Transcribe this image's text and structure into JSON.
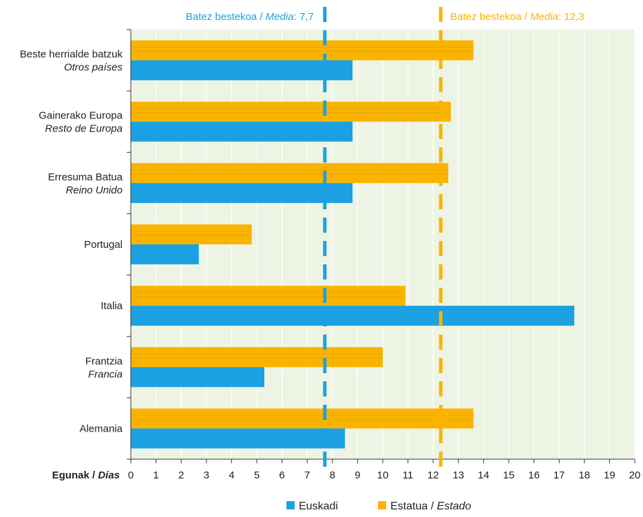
{
  "chart_data": {
    "type": "bar",
    "orientation": "horizontal",
    "categories": [
      {
        "line1": "Beste herrialde batzuk",
        "line2": "Otros países"
      },
      {
        "line1": "Gainerako Europa",
        "line2": "Resto de Europa"
      },
      {
        "line1": "Erresuma Batua",
        "line2": "Reino Unido"
      },
      {
        "line1": "Portugal",
        "line2": ""
      },
      {
        "line1": "Italia",
        "line2": ""
      },
      {
        "line1": "Frantzia",
        "line2": "Francia"
      },
      {
        "line1": "Alemania",
        "line2": ""
      }
    ],
    "series": [
      {
        "name": "Euskadi",
        "color": "#1ba1e2",
        "values": [
          8.8,
          8.8,
          8.8,
          2.7,
          17.6,
          5.3,
          8.5
        ]
      },
      {
        "name": "Estatua / Estado",
        "color": "#fab400",
        "values": [
          13.6,
          12.7,
          12.6,
          4.8,
          10.9,
          10.0,
          13.6
        ]
      }
    ],
    "xlim": [
      0,
      20
    ],
    "xticks": [
      "0",
      "1",
      "2",
      "3",
      "4",
      "5",
      "6",
      "7",
      "8",
      "9",
      "10",
      "11",
      "12",
      "13",
      "14",
      "15",
      "16",
      "17",
      "18",
      "19",
      "20"
    ],
    "xlabel": {
      "bold": "Egunak / ",
      "italic": "Días"
    },
    "mean_lines": [
      {
        "series": "Euskadi",
        "value": 7.7,
        "label_prefix": "Batez bestekoa / ",
        "label_italic": "Media",
        "label_suffix": ": 7,7",
        "color": "#1ba1e2"
      },
      {
        "series": "Estatua / Estado",
        "value": 12.3,
        "label_prefix": "Batez bestekoa / ",
        "label_italic": "Media",
        "label_suffix": ": 12,3",
        "color": "#fab400"
      }
    ],
    "legend": {
      "position": "bottom",
      "items": [
        {
          "text": "Euskadi",
          "italic": "",
          "color": "#1ba1e2"
        },
        {
          "text": "Estatua / ",
          "italic": "Estado",
          "color": "#fab400"
        }
      ]
    },
    "plot_background": "#eef4e4",
    "grid": true
  }
}
